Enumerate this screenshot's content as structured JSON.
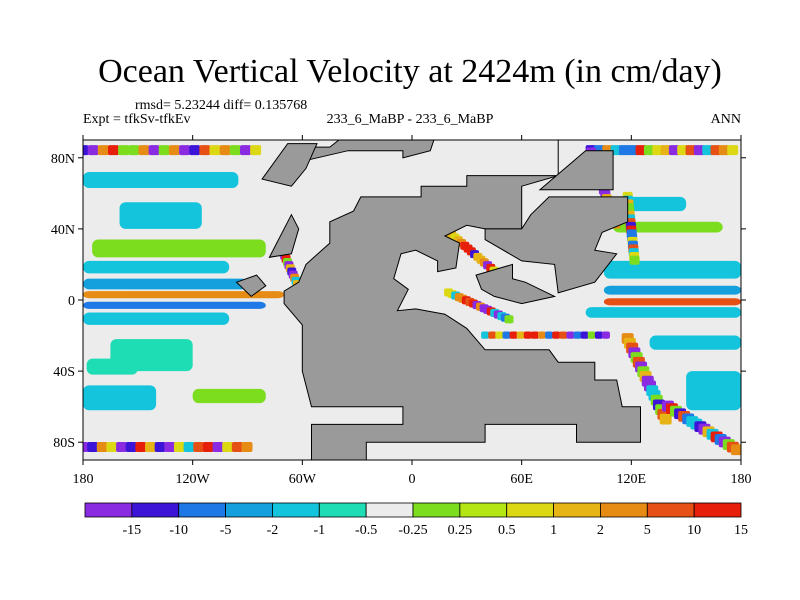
{
  "chart_data": {
    "type": "heatmap",
    "title": "Ocean Vertical Velocity at 2424m (in cm/day)",
    "stats_text": "rmsd= 5.23244 diff= 0.135768",
    "left_label": "Expt = tfkSv-tfkEv",
    "center_label": "233_6_MaBP - 233_6_MaBP",
    "right_label": "ANN",
    "x_ticks": [
      {
        "lon": -180,
        "label": "180"
      },
      {
        "lon": -120,
        "label": "120W"
      },
      {
        "lon": -60,
        "label": "60W"
      },
      {
        "lon": 0,
        "label": "0"
      },
      {
        "lon": 60,
        "label": "60E"
      },
      {
        "lon": 120,
        "label": "120E"
      },
      {
        "lon": 180,
        "label": "180"
      }
    ],
    "y_ticks": [
      {
        "lat": 80,
        "label": "80N"
      },
      {
        "lat": 40,
        "label": "40N"
      },
      {
        "lat": 0,
        "label": "0"
      },
      {
        "lat": -40,
        "label": "40S"
      },
      {
        "lat": -80,
        "label": "80S"
      }
    ],
    "xlim": [
      -180,
      180
    ],
    "ylim": [
      -90,
      90
    ],
    "colorbar": {
      "colors": [
        "#8a2be2",
        "#3c14d8",
        "#1e78e6",
        "#14a0dc",
        "#14c4dc",
        "#1edcb4",
        "#ececec",
        "#7cdc1e",
        "#b4e614",
        "#dcd814",
        "#e6b414",
        "#e68c14",
        "#e65014",
        "#e61e0a"
      ],
      "labels": [
        "-15",
        "-10",
        "-5",
        "-2",
        "-1",
        "-0.5",
        "-0.25",
        "0.25",
        "0.5",
        "1",
        "2",
        "5",
        "10",
        "15"
      ]
    },
    "land_color": "#9a9a9a",
    "field_description": "Mostly near-zero vertical velocity (-0.25 to 0.25) over ocean; strong positive and negative cells along western boundaries, equatorial bands, and high-latitude margins; large land masses shaded gray."
  }
}
